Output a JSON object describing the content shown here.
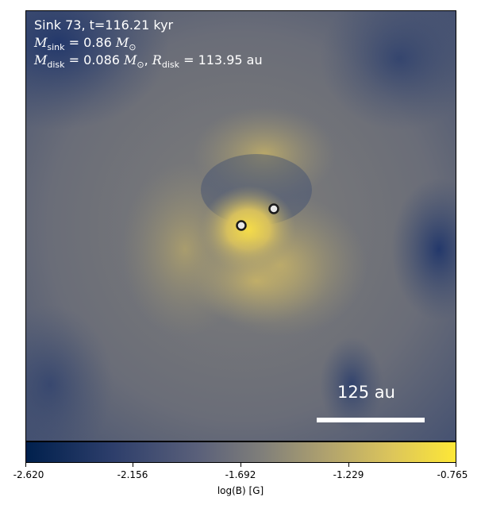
{
  "header": {
    "line1": "Sink 73, t=116.21 kyr",
    "msink_value": "= 0.86",
    "mdisk_value": "= 0.086",
    "rdisk_value": "= 113.95 au"
  },
  "scale_bar": {
    "label": "125 au"
  },
  "colorbar": {
    "ticks": [
      "-2.620",
      "-2.156",
      "-1.692",
      "-1.229",
      "-0.765"
    ],
    "label": "log(B) [G]",
    "colors": {
      "low": "#00204d",
      "mid": "#807f7a",
      "high": "#fde737"
    }
  }
}
